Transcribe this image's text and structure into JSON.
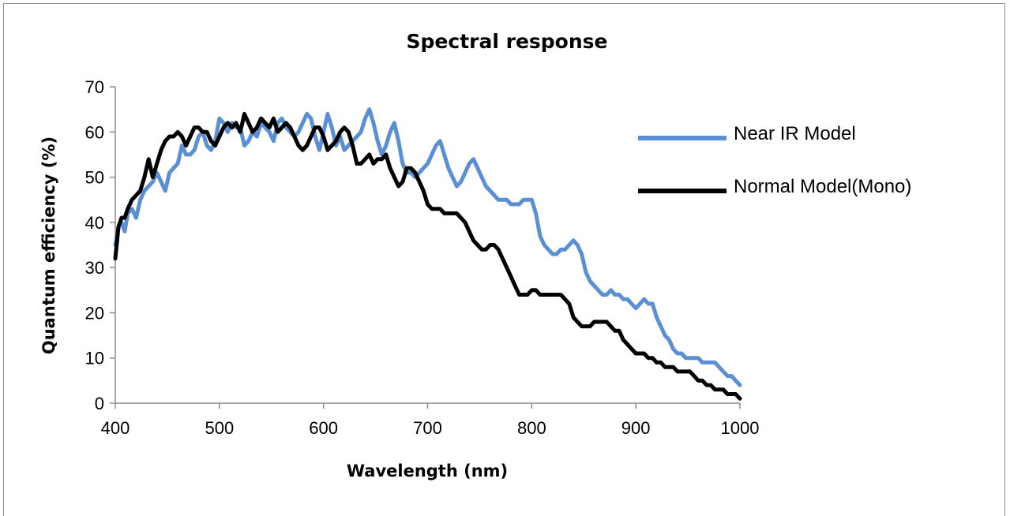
{
  "chart_data": {
    "type": "line",
    "title": "Spectral response",
    "xlabel": "Wavelength (nm)",
    "ylabel": "Quantum efficiency (%)",
    "xlim": [
      400,
      1000
    ],
    "ylim": [
      0,
      70
    ],
    "xticks": [
      400,
      500,
      600,
      700,
      800,
      900,
      1000
    ],
    "yticks": [
      0,
      10,
      20,
      30,
      40,
      50,
      60,
      70
    ],
    "grid": false,
    "legend_position": "right",
    "series": [
      {
        "name": "Near IR Model",
        "color": "#5b8fd4",
        "x": [
          400,
          403,
          406,
          409,
          412,
          416,
          420,
          424,
          428,
          432,
          436,
          440,
          444,
          448,
          452,
          456,
          460,
          464,
          468,
          472,
          476,
          480,
          484,
          488,
          492,
          496,
          500,
          504,
          508,
          512,
          516,
          520,
          524,
          528,
          532,
          536,
          540,
          544,
          548,
          552,
          556,
          560,
          564,
          568,
          572,
          576,
          580,
          584,
          588,
          592,
          596,
          600,
          604,
          608,
          612,
          616,
          620,
          624,
          628,
          632,
          636,
          640,
          644,
          648,
          652,
          656,
          660,
          664,
          668,
          672,
          676,
          680,
          684,
          688,
          692,
          696,
          700,
          704,
          708,
          712,
          716,
          720,
          724,
          728,
          732,
          736,
          740,
          744,
          748,
          752,
          756,
          760,
          764,
          768,
          772,
          776,
          780,
          784,
          788,
          792,
          796,
          800,
          804,
          808,
          812,
          816,
          820,
          824,
          828,
          832,
          836,
          840,
          844,
          848,
          852,
          856,
          860,
          864,
          868,
          872,
          876,
          880,
          884,
          888,
          892,
          896,
          900,
          904,
          908,
          912,
          916,
          920,
          924,
          928,
          932,
          936,
          940,
          944,
          948,
          952,
          956,
          960,
          964,
          968,
          972,
          976,
          980,
          984,
          988,
          992,
          996,
          1000
        ],
        "y": [
          35,
          39,
          40,
          38,
          42,
          43,
          41,
          45,
          47,
          48,
          49,
          51,
          49,
          47,
          51,
          52,
          53,
          57,
          55,
          55,
          56,
          59,
          60,
          57,
          56,
          58,
          63,
          62,
          60,
          62,
          61,
          61,
          57,
          58,
          60,
          59,
          62,
          61,
          60,
          58,
          62,
          63,
          61,
          60,
          59,
          60,
          62,
          64,
          63,
          59,
          56,
          60,
          64,
          61,
          57,
          59,
          56,
          57,
          58,
          59,
          60,
          63,
          65,
          62,
          58,
          55,
          57,
          60,
          62,
          58,
          53,
          51,
          51,
          50,
          51,
          52,
          53,
          55,
          57,
          58,
          55,
          52,
          50,
          48,
          49,
          51,
          53,
          54,
          52,
          50,
          48,
          47,
          46,
          45,
          45,
          45,
          44,
          44,
          44,
          45,
          45,
          45,
          42,
          37,
          35,
          34,
          33,
          33,
          34,
          34,
          35,
          36,
          35,
          33,
          29,
          27,
          26,
          25,
          24,
          24,
          25,
          24,
          24,
          23,
          23,
          22,
          21,
          22,
          23,
          22,
          22,
          19,
          17,
          15,
          14,
          12,
          11,
          11,
          10,
          10,
          10,
          10,
          9,
          9,
          9,
          9,
          8,
          7,
          6,
          6,
          5,
          4
        ]
      },
      {
        "name": "Normal Model(Mono)",
        "color": "#000000",
        "x": [
          400,
          403,
          406,
          409,
          412,
          416,
          420,
          424,
          428,
          432,
          436,
          440,
          444,
          448,
          452,
          456,
          460,
          464,
          468,
          472,
          476,
          480,
          484,
          488,
          492,
          496,
          500,
          504,
          508,
          512,
          516,
          520,
          524,
          528,
          532,
          536,
          540,
          544,
          548,
          552,
          556,
          560,
          564,
          568,
          572,
          576,
          580,
          584,
          588,
          592,
          596,
          600,
          604,
          608,
          612,
          616,
          620,
          624,
          628,
          632,
          636,
          640,
          644,
          648,
          652,
          656,
          660,
          664,
          668,
          672,
          676,
          680,
          684,
          688,
          692,
          696,
          700,
          704,
          708,
          712,
          716,
          720,
          724,
          728,
          732,
          736,
          740,
          744,
          748,
          752,
          756,
          760,
          764,
          768,
          772,
          776,
          780,
          784,
          788,
          792,
          796,
          800,
          804,
          808,
          812,
          816,
          820,
          824,
          828,
          832,
          836,
          840,
          844,
          848,
          852,
          856,
          860,
          864,
          868,
          872,
          876,
          880,
          884,
          888,
          892,
          896,
          900,
          904,
          908,
          912,
          916,
          920,
          924,
          928,
          932,
          936,
          940,
          944,
          948,
          952,
          956,
          960,
          964,
          968,
          972,
          976,
          980,
          984,
          988,
          992,
          996,
          1000
        ],
        "y": [
          32,
          39,
          41,
          41,
          43,
          45,
          46,
          47,
          50,
          54,
          50,
          53,
          56,
          58,
          59,
          59,
          60,
          59,
          57,
          59,
          61,
          61,
          60,
          60,
          58,
          57,
          59,
          61,
          62,
          61,
          62,
          60,
          64,
          62,
          60,
          61,
          63,
          62,
          61,
          63,
          60,
          61,
          62,
          61,
          59,
          57,
          56,
          57,
          59,
          61,
          61,
          59,
          56,
          57,
          58,
          60,
          61,
          60,
          57,
          53,
          53,
          54,
          55,
          53,
          54,
          54,
          55,
          52,
          50,
          48,
          49,
          52,
          52,
          51,
          49,
          47,
          44,
          43,
          43,
          43,
          42,
          42,
          42,
          42,
          41,
          40,
          38,
          36,
          35,
          34,
          34,
          35,
          35,
          34,
          32,
          30,
          28,
          26,
          24,
          24,
          24,
          25,
          25,
          24,
          24,
          24,
          24,
          24,
          24,
          23,
          22,
          19,
          18,
          17,
          17,
          17,
          18,
          18,
          18,
          18,
          17,
          16,
          16,
          14,
          13,
          12,
          11,
          11,
          11,
          10,
          10,
          9,
          9,
          8,
          8,
          8,
          7,
          7,
          7,
          7,
          6,
          5,
          5,
          4,
          4,
          3,
          3,
          3,
          2,
          2,
          2,
          1
        ]
      }
    ]
  }
}
